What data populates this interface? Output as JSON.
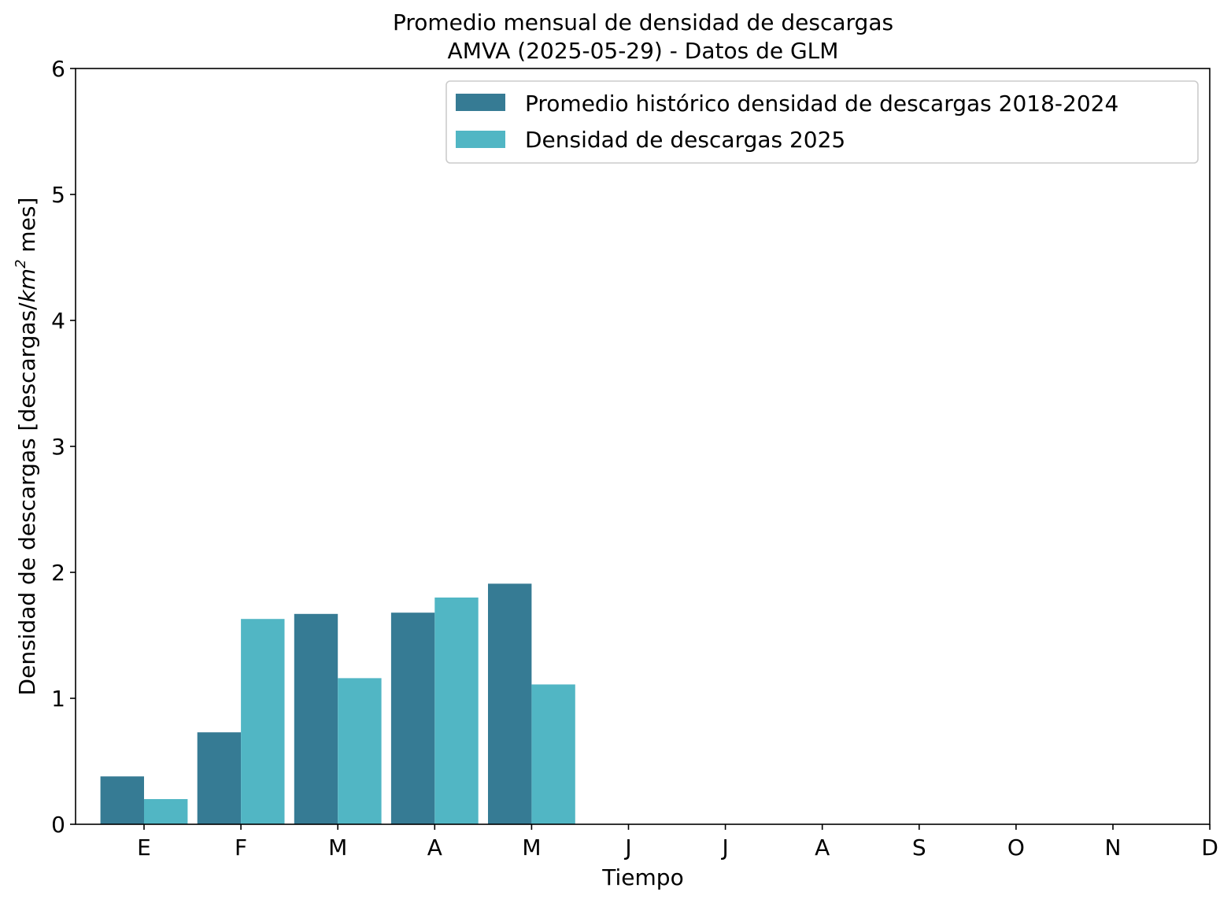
{
  "chart_data": {
    "type": "bar",
    "title": "Promedio mensual de densidad de descargas",
    "subtitle": "AMVA (2025-05-29) - Datos de GLM",
    "xlabel": "Tiempo",
    "ylabel_prefix": "Densidad de descargas [descargas/",
    "ylabel_unit_base": "km",
    "ylabel_unit_exp": "2",
    "ylabel_suffix": " mes]",
    "ylim": [
      0,
      6
    ],
    "yticks": [
      "0",
      "1",
      "2",
      "3",
      "4",
      "5",
      "6"
    ],
    "categories": [
      "E",
      "F",
      "M",
      "A",
      "M",
      "J",
      "J",
      "A",
      "S",
      "O",
      "N",
      "D"
    ],
    "legend_position": "top-right",
    "series": [
      {
        "name": "Promedio histórico densidad de descargas 2018-2024",
        "color": "#367b94",
        "values": [
          0.38,
          0.73,
          1.67,
          1.68,
          1.91,
          null,
          null,
          null,
          null,
          null,
          null,
          null
        ]
      },
      {
        "name": "Densidad de descargas 2025",
        "color": "#51b6c4",
        "values": [
          0.2,
          1.63,
          1.16,
          1.8,
          1.11,
          null,
          null,
          null,
          null,
          null,
          null,
          null
        ]
      }
    ]
  }
}
